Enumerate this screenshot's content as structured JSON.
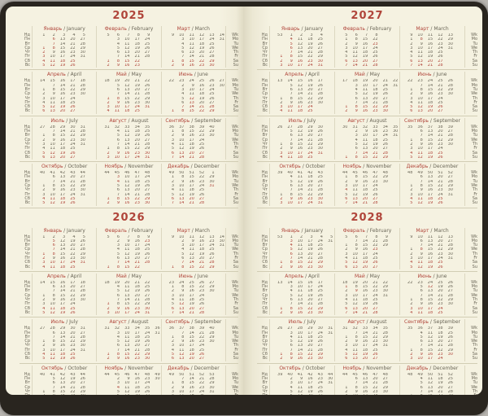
{
  "colors": {
    "accent_red": "#b0453a",
    "text": "#6a6657",
    "paper": "#f5f2e0",
    "cover": "#29251f"
  },
  "day_rows_ru": [
    "Нд",
    "Пн",
    "Вт",
    "Ср",
    "Чт",
    "Пт",
    "Сб",
    "Вс"
  ],
  "day_rows_en": [
    "Wk",
    "Mo",
    "Tu",
    "We",
    "Th",
    "Fr",
    "Sa",
    "Su"
  ],
  "month_header_separator": " / ",
  "pages": [
    {
      "side": "left",
      "years": [
        {
          "label": "2025",
          "months": [
            {
              "ru": "Январь",
              "en": "January",
              "start": 2,
              "days": 31,
              "weeks": [
                "1",
                "2",
                "3",
                "4",
                "5"
              ],
              "holidays": [
                1,
                2,
                3,
                4,
                5,
                6,
                7,
                8
              ]
            },
            {
              "ru": "Февраль",
              "en": "February",
              "start": 5,
              "days": 28,
              "weeks": [
                "5",
                "6",
                "7",
                "8",
                "9"
              ],
              "holidays": [
                23
              ]
            },
            {
              "ru": "Март",
              "en": "March",
              "start": 5,
              "days": 31,
              "weeks": [
                "9",
                "10",
                "11",
                "12",
                "13",
                "14"
              ],
              "holidays": [
                8
              ]
            },
            {
              "ru": "Апрель",
              "en": "April",
              "start": 1,
              "days": 30,
              "weeks": [
                "14",
                "15",
                "16",
                "17",
                "18"
              ],
              "holidays": []
            },
            {
              "ru": "Май",
              "en": "May",
              "start": 3,
              "days": 31,
              "weeks": [
                "18",
                "19",
                "20",
                "21",
                "22"
              ],
              "holidays": [
                1,
                2,
                8,
                9
              ]
            },
            {
              "ru": "Июнь",
              "en": "June",
              "start": 6,
              "days": 30,
              "weeks": [
                "22",
                "23",
                "24",
                "25",
                "26",
                "27"
              ],
              "holidays": [
                12,
                13
              ]
            },
            {
              "ru": "Июль",
              "en": "July",
              "start": 1,
              "days": 31,
              "weeks": [
                "27",
                "28",
                "29",
                "30",
                "31"
              ],
              "holidays": []
            },
            {
              "ru": "Август",
              "en": "August",
              "start": 4,
              "days": 31,
              "weeks": [
                "31",
                "32",
                "33",
                "34",
                "35"
              ],
              "holidays": []
            },
            {
              "ru": "Сентябрь",
              "en": "September",
              "start": 0,
              "days": 30,
              "weeks": [
                "36",
                "37",
                "38",
                "39",
                "40"
              ],
              "holidays": []
            },
            {
              "ru": "Октябрь",
              "en": "October",
              "start": 2,
              "days": 31,
              "weeks": [
                "40",
                "41",
                "42",
                "43",
                "44"
              ],
              "holidays": []
            },
            {
              "ru": "Ноябрь",
              "en": "November",
              "start": 5,
              "days": 30,
              "weeks": [
                "44",
                "45",
                "46",
                "47",
                "48"
              ],
              "holidays": [
                3,
                4
              ]
            },
            {
              "ru": "Декабрь",
              "en": "December",
              "start": 0,
              "days": 31,
              "weeks": [
                "49",
                "50",
                "51",
                "52",
                "1"
              ],
              "holidays": [
                31
              ]
            }
          ]
        },
        {
          "label": "2026",
          "months": [
            {
              "ru": "Январь",
              "en": "January",
              "start": 3,
              "days": 31,
              "weeks": [
                "1",
                "2",
                "3",
                "4",
                "5"
              ],
              "holidays": [
                1,
                2,
                3,
                4,
                5,
                6,
                7,
                8
              ]
            },
            {
              "ru": "Февраль",
              "en": "February",
              "start": 6,
              "days": 28,
              "weeks": [
                "5",
                "6",
                "7",
                "8",
                "9"
              ],
              "holidays": [
                23
              ]
            },
            {
              "ru": "Март",
              "en": "March",
              "start": 6,
              "days": 31,
              "weeks": [
                "9",
                "10",
                "11",
                "12",
                "13",
                "14"
              ],
              "holidays": [
                8
              ]
            },
            {
              "ru": "Апрель",
              "en": "April",
              "start": 2,
              "days": 30,
              "weeks": [
                "14",
                "15",
                "16",
                "17",
                "18"
              ],
              "holidays": []
            },
            {
              "ru": "Май",
              "en": "May",
              "start": 4,
              "days": 31,
              "weeks": [
                "18",
                "19",
                "20",
                "21",
                "22"
              ],
              "holidays": [
                1,
                9
              ]
            },
            {
              "ru": "Июнь",
              "en": "June",
              "start": 0,
              "days": 30,
              "weeks": [
                "23",
                "24",
                "25",
                "26",
                "27"
              ],
              "holidays": [
                12
              ]
            },
            {
              "ru": "Июль",
              "en": "July",
              "start": 2,
              "days": 31,
              "weeks": [
                "27",
                "28",
                "29",
                "30",
                "31"
              ],
              "holidays": []
            },
            {
              "ru": "Август",
              "en": "August",
              "start": 5,
              "days": 31,
              "weeks": [
                "31",
                "32",
                "33",
                "34",
                "35",
                "36"
              ],
              "holidays": []
            },
            {
              "ru": "Сентябрь",
              "en": "September",
              "start": 1,
              "days": 30,
              "weeks": [
                "36",
                "37",
                "38",
                "39",
                "40"
              ],
              "holidays": []
            },
            {
              "ru": "Октябрь",
              "en": "October",
              "start": 3,
              "days": 31,
              "weeks": [
                "40",
                "41",
                "42",
                "43",
                "44"
              ],
              "holidays": []
            },
            {
              "ru": "Ноябрь",
              "en": "November",
              "start": 6,
              "days": 30,
              "weeks": [
                "44",
                "45",
                "46",
                "47",
                "48",
                "49"
              ],
              "holidays": [
                4
              ]
            },
            {
              "ru": "Декабрь",
              "en": "December",
              "start": 1,
              "days": 31,
              "weeks": [
                "49",
                "50",
                "51",
                "52",
                "53"
              ],
              "holidays": []
            }
          ]
        }
      ]
    },
    {
      "side": "right",
      "years": [
        {
          "label": "2027",
          "months": [
            {
              "ru": "Январь",
              "en": "January",
              "start": 4,
              "days": 31,
              "weeks": [
                "53",
                "1",
                "2",
                "3",
                "4"
              ],
              "holidays": [
                1,
                2,
                3,
                4,
                5,
                6,
                7,
                8
              ]
            },
            {
              "ru": "Февраль",
              "en": "February",
              "start": 0,
              "days": 28,
              "weeks": [
                "5",
                "6",
                "7",
                "8"
              ],
              "holidays": [
                23
              ]
            },
            {
              "ru": "Март",
              "en": "March",
              "start": 0,
              "days": 31,
              "weeks": [
                "9",
                "10",
                "11",
                "12",
                "13"
              ],
              "holidays": [
                8
              ]
            },
            {
              "ru": "Апрель",
              "en": "April",
              "start": 3,
              "days": 30,
              "weeks": [
                "13",
                "14",
                "15",
                "16",
                "17"
              ],
              "holidays": []
            },
            {
              "ru": "Май",
              "en": "May",
              "start": 5,
              "days": 31,
              "weeks": [
                "17",
                "18",
                "19",
                "20",
                "21",
                "22"
              ],
              "holidays": [
                1,
                9
              ]
            },
            {
              "ru": "Июнь",
              "en": "June",
              "start": 1,
              "days": 30,
              "weeks": [
                "22",
                "23",
                "24",
                "25",
                "26"
              ],
              "holidays": [
                12
              ]
            },
            {
              "ru": "Июль",
              "en": "July",
              "start": 3,
              "days": 31,
              "weeks": [
                "26",
                "27",
                "28",
                "29",
                "30"
              ],
              "holidays": []
            },
            {
              "ru": "Август",
              "en": "August",
              "start": 6,
              "days": 31,
              "weeks": [
                "30",
                "31",
                "32",
                "33",
                "34",
                "35"
              ],
              "holidays": []
            },
            {
              "ru": "Сентябрь",
              "en": "September",
              "start": 2,
              "days": 30,
              "weeks": [
                "35",
                "36",
                "37",
                "38",
                "39"
              ],
              "holidays": []
            },
            {
              "ru": "Октябрь",
              "en": "October",
              "start": 4,
              "days": 31,
              "weeks": [
                "39",
                "40",
                "41",
                "42",
                "43"
              ],
              "holidays": []
            },
            {
              "ru": "Ноябрь",
              "en": "November",
              "start": 0,
              "days": 30,
              "weeks": [
                "44",
                "45",
                "46",
                "47",
                "48"
              ],
              "holidays": [
                4
              ]
            },
            {
              "ru": "Декабрь",
              "en": "December",
              "start": 2,
              "days": 31,
              "weeks": [
                "48",
                "49",
                "50",
                "51",
                "52"
              ],
              "holidays": []
            }
          ]
        },
        {
          "label": "2028",
          "months": [
            {
              "ru": "Январь",
              "en": "January",
              "start": 5,
              "days": 31,
              "weeks": [
                "53",
                "1",
                "2",
                "3",
                "4",
                "5"
              ],
              "holidays": [
                1,
                2,
                3,
                4,
                5,
                6,
                7,
                8
              ]
            },
            {
              "ru": "Февраль",
              "en": "February",
              "start": 1,
              "days": 29,
              "weeks": [
                "5",
                "6",
                "7",
                "8",
                "9"
              ],
              "holidays": [
                23
              ]
            },
            {
              "ru": "Март",
              "en": "March",
              "start": 2,
              "days": 31,
              "weeks": [
                "9",
                "10",
                "11",
                "12",
                "13"
              ],
              "holidays": [
                8
              ]
            },
            {
              "ru": "Апрель",
              "en": "April",
              "start": 5,
              "days": 30,
              "weeks": [
                "13",
                "14",
                "15",
                "16",
                "17"
              ],
              "holidays": []
            },
            {
              "ru": "Май",
              "en": "May",
              "start": 0,
              "days": 31,
              "weeks": [
                "18",
                "19",
                "20",
                "21",
                "22"
              ],
              "holidays": [
                1,
                9
              ]
            },
            {
              "ru": "Июнь",
              "en": "June",
              "start": 3,
              "days": 30,
              "weeks": [
                "22",
                "23",
                "24",
                "25",
                "26"
              ],
              "holidays": [
                12
              ]
            },
            {
              "ru": "Июль",
              "en": "July",
              "start": 5,
              "days": 31,
              "weeks": [
                "26",
                "27",
                "28",
                "29",
                "30",
                "31"
              ],
              "holidays": []
            },
            {
              "ru": "Август",
              "en": "August",
              "start": 1,
              "days": 31,
              "weeks": [
                "31",
                "32",
                "33",
                "34",
                "35"
              ],
              "holidays": []
            },
            {
              "ru": "Сентябрь",
              "en": "September",
              "start": 4,
              "days": 30,
              "weeks": [
                "35",
                "36",
                "37",
                "38",
                "39"
              ],
              "holidays": []
            },
            {
              "ru": "Октябрь",
              "en": "October",
              "start": 6,
              "days": 31,
              "weeks": [
                "39",
                "40",
                "41",
                "42",
                "43",
                "44"
              ],
              "holidays": []
            },
            {
              "ru": "Ноябрь",
              "en": "November",
              "start": 2,
              "days": 30,
              "weeks": [
                "44",
                "45",
                "46",
                "47",
                "48"
              ],
              "holidays": [
                4
              ]
            },
            {
              "ru": "Декабрь",
              "en": "December",
              "start": 4,
              "days": 31,
              "weeks": [
                "48",
                "49",
                "50",
                "51",
                "52"
              ],
              "holidays": []
            }
          ]
        }
      ]
    }
  ]
}
